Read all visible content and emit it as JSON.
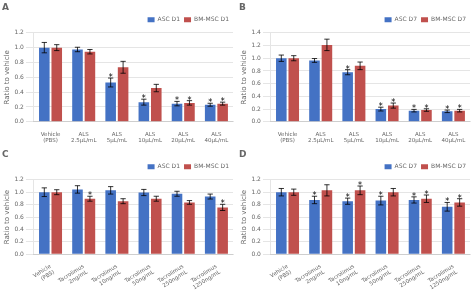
{
  "chart_data": [
    {
      "type": "bar",
      "title": "A",
      "ylabel": "Ratio to vehicle",
      "categories": [
        "Vehicle\n(PBS)",
        "ALS\n2.5μL/mL",
        "ALS\n5μL/mL",
        "ALS\n10μL/mL",
        "ALS\n20μL/mL",
        "ALS\n40μL/mL"
      ],
      "series": [
        {
          "name": "ASC D1",
          "color": "#4472C4",
          "values": [
            1.0,
            0.975,
            0.53,
            0.265,
            0.245,
            0.23
          ],
          "errors": [
            0.07,
            0.03,
            0.06,
            0.04,
            0.03,
            0.02
          ],
          "annotations": [
            null,
            null,
            "*",
            "*",
            "*",
            "*"
          ]
        },
        {
          "name": "BM-MSC D1",
          "color": "#C0504D",
          "values": [
            1.0,
            0.945,
            0.735,
            0.455,
            0.255,
            0.245
          ],
          "errors": [
            0.04,
            0.03,
            0.08,
            0.05,
            0.03,
            0.02
          ],
          "annotations": [
            null,
            null,
            null,
            null,
            "*",
            "*"
          ]
        }
      ],
      "ylim": [
        0,
        1.2
      ],
      "yticks": [
        {
          "value": 0,
          "label": "0.0"
        },
        0.2,
        0.4,
        0.6,
        0.8,
        {
          "value": 1.0,
          "label": "1.0"
        },
        1.2
      ],
      "grid": true,
      "legend": "upper right"
    },
    {
      "type": "bar",
      "title": "B",
      "ylabel": "Ratio to vehicle",
      "categories": [
        "Vehicle\n(PBS)",
        "ALS\n2.5μL/mL",
        "ALS\n5μL/mL",
        "ALS\n10μL/mL",
        "ALS\n20μL/mL",
        "ALS\n40μL/mL"
      ],
      "series": [
        {
          "name": "ASC D7",
          "color": "#4472C4",
          "values": [
            1.0,
            0.965,
            0.78,
            0.2,
            0.175,
            0.165
          ],
          "errors": [
            0.05,
            0.03,
            0.04,
            0.03,
            0.02,
            0.02
          ],
          "annotations": [
            null,
            null,
            "*",
            "*",
            "*",
            "*"
          ]
        },
        {
          "name": "BM-MSC D7",
          "color": "#C0504D",
          "values": [
            1.0,
            1.21,
            0.88,
            0.255,
            0.185,
            0.175
          ],
          "errors": [
            0.04,
            0.09,
            0.06,
            0.04,
            0.02,
            0.02
          ],
          "annotations": [
            null,
            null,
            null,
            "*",
            "*",
            "*"
          ]
        }
      ],
      "ylim": [
        0,
        1.4
      ],
      "yticks": [
        {
          "value": 0,
          "label": "0.0"
        },
        0.2,
        0.4,
        0.6,
        0.8,
        {
          "value": 1.0,
          "label": "1.0"
        },
        1.2,
        1.4
      ],
      "grid": true,
      "legend": "upper right"
    },
    {
      "type": "bar",
      "title": "C",
      "ylabel": "Ratio to vehicle",
      "categories": [
        "Vehicle\n(PBS)",
        "Tacrolimus\n2ng/mL",
        "Tacrolimus\n10ng/mL",
        "Tacrolimus\n50ng/mL",
        "Tacrolimus\n250ng/mL",
        "Tacrolimus\n1250ng/mL"
      ],
      "series": [
        {
          "name": "ASC D1",
          "color": "#4472C4",
          "values": [
            1.0,
            1.045,
            1.03,
            0.995,
            0.975,
            0.93
          ],
          "errors": [
            0.07,
            0.06,
            0.06,
            0.05,
            0.04,
            0.04
          ],
          "annotations": [
            null,
            null,
            null,
            null,
            null,
            null
          ]
        },
        {
          "name": "BM-MSC D1",
          "color": "#C0504D",
          "values": [
            1.0,
            0.895,
            0.855,
            0.895,
            0.835,
            0.755
          ],
          "errors": [
            0.04,
            0.04,
            0.04,
            0.04,
            0.03,
            0.05
          ],
          "annotations": [
            null,
            "*",
            null,
            null,
            null,
            "*"
          ]
        }
      ],
      "ylim": [
        0,
        1.2
      ],
      "yticks": [
        {
          "value": 0,
          "label": "0.0"
        },
        0.2,
        0.4,
        0.6,
        0.8,
        {
          "value": 1.0,
          "label": "1.0"
        },
        1.2
      ],
      "grid": true,
      "legend": "upper right"
    },
    {
      "type": "bar",
      "title": "D",
      "ylabel": "Ratio to vehicle",
      "categories": [
        "Vehicle\n(PBS)",
        "Tacrolimus\n2ng/mL",
        "Tacrolimus\n10ng/mL",
        "Tacrolimus\n50ng/mL",
        "Tacrolimus\n250ng/mL",
        "Tacrolimus\n1250ng/mL"
      ],
      "series": [
        {
          "name": "ASC D7",
          "color": "#4472C4",
          "values": [
            1.0,
            0.875,
            0.855,
            0.865,
            0.875,
            0.765
          ],
          "errors": [
            0.06,
            0.06,
            0.05,
            0.07,
            0.05,
            0.07
          ],
          "annotations": [
            null,
            "*",
            "*",
            "*",
            "*",
            "*"
          ]
        },
        {
          "name": "BM-MSC D7",
          "color": "#C0504D",
          "values": [
            1.0,
            1.03,
            1.03,
            1.0,
            0.895,
            0.835
          ],
          "errors": [
            0.05,
            0.09,
            0.07,
            0.06,
            0.06,
            0.06
          ],
          "annotations": [
            null,
            null,
            "*",
            null,
            "*",
            "*"
          ]
        }
      ],
      "ylim": [
        0,
        1.2
      ],
      "yticks": [
        {
          "value": 0,
          "label": "0.0"
        },
        0.2,
        0.4,
        0.6,
        0.8,
        {
          "value": 1.0,
          "label": "1.0"
        },
        1.2
      ],
      "grid": true,
      "legend": "upper right"
    }
  ]
}
